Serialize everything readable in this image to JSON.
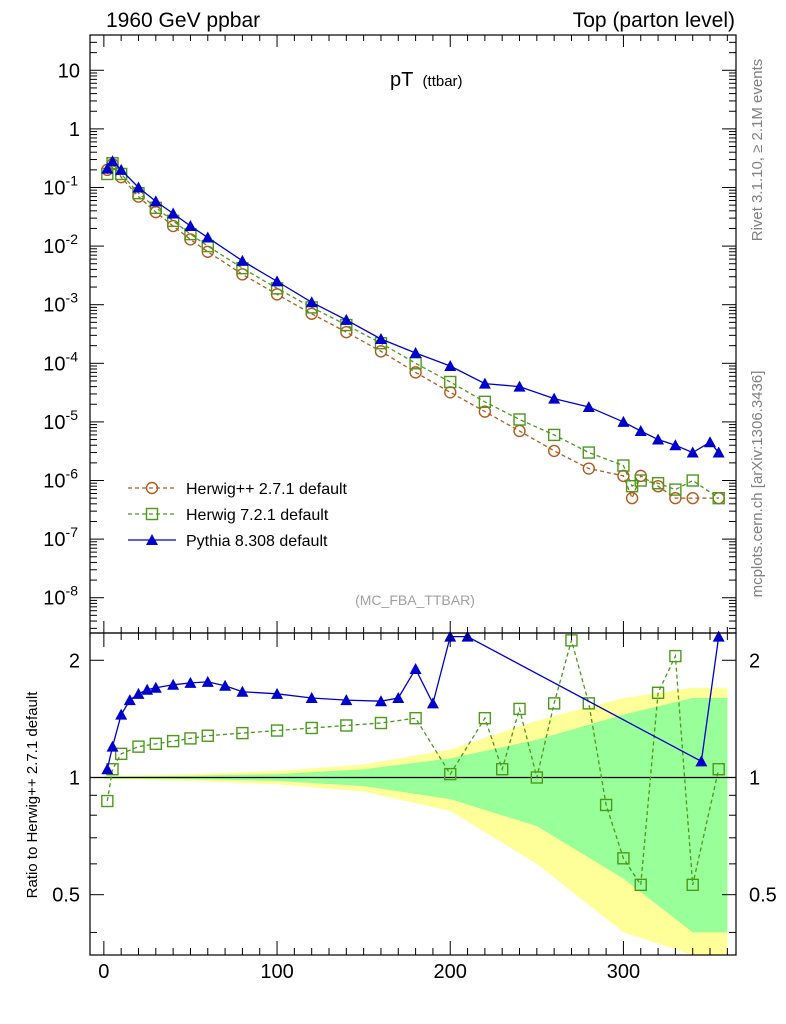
{
  "header": {
    "left": "1960 GeV ppbar",
    "right": "Top (parton level)"
  },
  "side": {
    "rivet": "Rivet 3.1.10, ≥ 2.1M events",
    "mcplots": "mcplots.cern.ch [arXiv:1306.3436]"
  },
  "plot_title": {
    "main": "pT",
    "sub": "(ttbar)"
  },
  "analysis_label": "(MC_FBA_TTBAR)",
  "ratio_ylabel": "Ratio to Herwig++ 2.7.1 default",
  "colors": {
    "herwigpp": "#b35a1f",
    "herwig7": "#4b9a1b",
    "pythia": "#0000cc",
    "band_yellow": "#ffff99",
    "band_green": "#99ff99"
  },
  "chart_data": [
    {
      "type": "scatter",
      "title": "pT (ttbar)",
      "xlabel": "",
      "ylabel": "",
      "xlim": [
        -8,
        365
      ],
      "ylog": true,
      "ylim": [
        2.5e-09,
        40
      ],
      "x_ticks": [
        "0",
        "100",
        "200",
        "300"
      ],
      "y_ticks": [
        "10^-8",
        "10^-7",
        "10^-6",
        "10^-5",
        "10^-4",
        "10^-3",
        "10^-2",
        "10^-1",
        "1",
        "10"
      ],
      "legend_position": "bottom-left",
      "series": [
        {
          "name": "Herwig++ 2.7.1 default",
          "marker": "open-circle",
          "style": "dashed",
          "x": [
            2,
            5,
            10,
            20,
            30,
            40,
            50,
            60,
            80,
            100,
            120,
            140,
            160,
            180,
            200,
            220,
            240,
            260,
            280,
            300,
            305,
            310,
            320,
            330,
            340,
            355
          ],
          "y": [
            0.2,
            0.25,
            0.15,
            0.07,
            0.038,
            0.022,
            0.013,
            0.008,
            0.0033,
            0.0015,
            0.0007,
            0.00034,
            0.00016,
            7e-05,
            3.2e-05,
            1.5e-05,
            7e-06,
            3.2e-06,
            1.6e-06,
            1.2e-06,
            5e-07,
            1.2e-06,
            8e-07,
            5e-07,
            5e-07,
            5e-07
          ]
        },
        {
          "name": "Herwig 7.2.1 default",
          "marker": "open-square",
          "style": "dashed",
          "x": [
            2,
            5,
            10,
            20,
            30,
            40,
            50,
            60,
            80,
            100,
            120,
            140,
            160,
            180,
            200,
            220,
            240,
            260,
            280,
            300,
            305,
            310,
            320,
            330,
            340,
            355
          ],
          "y": [
            0.17,
            0.26,
            0.17,
            0.08,
            0.045,
            0.027,
            0.016,
            0.01,
            0.0042,
            0.0019,
            0.0009,
            0.00045,
            0.00022,
            0.0001,
            4.8e-05,
            2.2e-05,
            1.1e-05,
            6e-06,
            3e-06,
            1.8e-06,
            8e-07,
            1e-06,
            9e-07,
            7e-07,
            1e-06,
            5e-07
          ]
        },
        {
          "name": "Pythia 8.308 default",
          "marker": "filled-triangle",
          "style": "solid",
          "x": [
            2,
            5,
            10,
            20,
            30,
            40,
            50,
            60,
            80,
            100,
            120,
            140,
            160,
            180,
            200,
            220,
            240,
            260,
            280,
            300,
            310,
            320,
            330,
            340,
            350,
            355
          ],
          "y": [
            0.21,
            0.28,
            0.2,
            0.1,
            0.058,
            0.036,
            0.022,
            0.014,
            0.0056,
            0.0025,
            0.0011,
            0.00055,
            0.00026,
            0.00015,
            9e-05,
            4.5e-05,
            4e-05,
            2.5e-05,
            1.8e-05,
            1e-05,
            7e-06,
            5e-06,
            4e-06,
            3e-06,
            4.5e-06,
            3e-06
          ]
        }
      ]
    },
    {
      "type": "scatter",
      "title": "",
      "xlabel": "",
      "ylabel": "Ratio to Herwig++ 2.7.1 default",
      "xlim": [
        -8,
        365
      ],
      "ylog": true,
      "ylim": [
        0.35,
        2.35
      ],
      "x_ticks": [
        "0",
        "100",
        "200",
        "300"
      ],
      "y_ticks": [
        "0.5",
        "1",
        "2"
      ],
      "reference_line": 1,
      "series": [
        {
          "name": "Herwig 7.2.1 default",
          "x": [
            2,
            5,
            10,
            20,
            30,
            40,
            50,
            60,
            80,
            100,
            120,
            140,
            160,
            180,
            200,
            220,
            230,
            240,
            250,
            260,
            270,
            280,
            290,
            300,
            310,
            320,
            330,
            340,
            355
          ],
          "y": [
            0.87,
            1.05,
            1.15,
            1.2,
            1.22,
            1.24,
            1.26,
            1.28,
            1.3,
            1.32,
            1.34,
            1.36,
            1.38,
            1.42,
            1.02,
            1.42,
            1.05,
            1.5,
            1.0,
            1.55,
            2.25,
            1.55,
            0.85,
            0.62,
            0.53,
            1.65,
            2.05,
            0.53,
            1.05
          ]
        },
        {
          "name": "Pythia 8.308 default",
          "x": [
            2,
            5,
            10,
            15,
            20,
            25,
            30,
            40,
            50,
            60,
            70,
            80,
            100,
            120,
            140,
            160,
            170,
            180,
            190,
            200,
            210,
            345,
            355
          ],
          "y": [
            1.05,
            1.2,
            1.45,
            1.58,
            1.64,
            1.68,
            1.7,
            1.73,
            1.75,
            1.76,
            1.72,
            1.66,
            1.64,
            1.6,
            1.58,
            1.57,
            1.6,
            1.9,
            1.55,
            2.3,
            2.3,
            1.1,
            2.3
          ]
        }
      ],
      "band_halfwidth_green": [
        [
          0,
          0.005
        ],
        [
          50,
          0.01
        ],
        [
          100,
          0.02
        ],
        [
          150,
          0.05
        ],
        [
          200,
          0.12
        ],
        [
          250,
          0.25
        ],
        [
          300,
          0.45
        ],
        [
          340,
          0.6
        ],
        [
          360,
          0.6
        ]
      ],
      "band_halfwidth_yellow": [
        [
          0,
          0.01
        ],
        [
          50,
          0.02
        ],
        [
          100,
          0.04
        ],
        [
          150,
          0.08
        ],
        [
          200,
          0.18
        ],
        [
          250,
          0.4
        ],
        [
          300,
          0.6
        ],
        [
          340,
          0.7
        ],
        [
          360,
          0.7
        ]
      ]
    }
  ]
}
